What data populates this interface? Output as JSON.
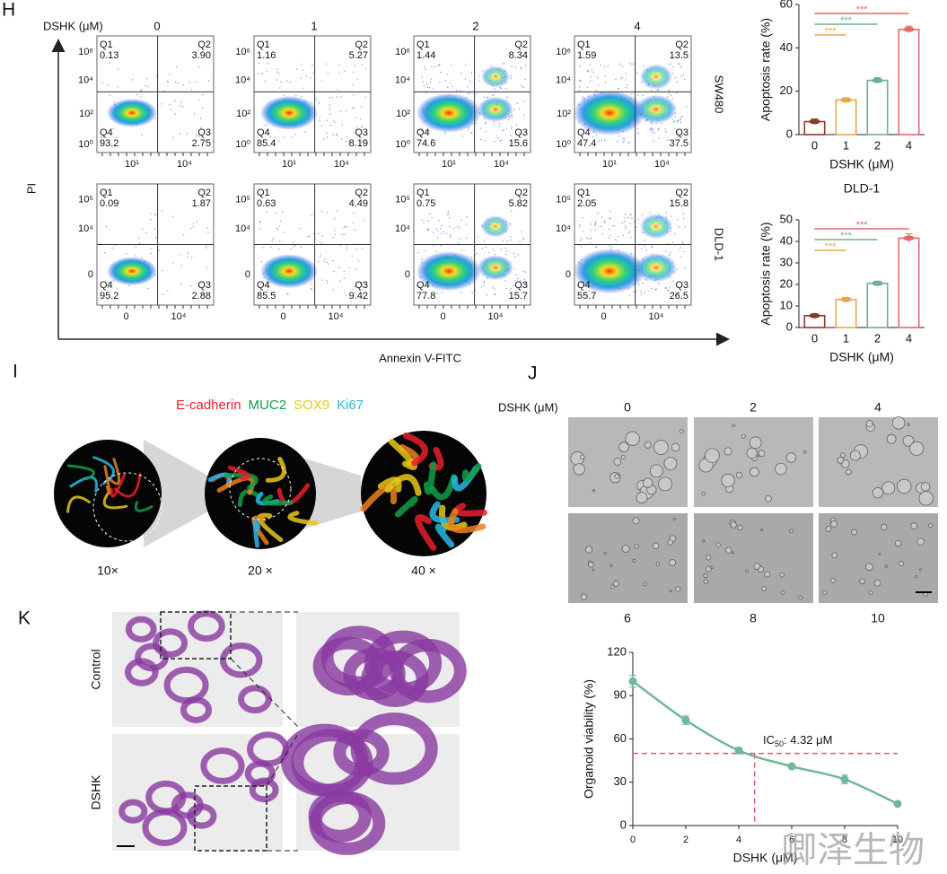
{
  "panel_labels": {
    "h": "H",
    "i": "I",
    "j": "J",
    "k": "K"
  },
  "flow_cytometry": {
    "dose_label": "DSHK (μM)",
    "doses": [
      "0",
      "1",
      "2",
      "4"
    ],
    "y_label": "PI",
    "x_label": "Annexin V-FITC",
    "quadrant_names": [
      "Q1",
      "Q2",
      "Q3",
      "Q4"
    ],
    "rows": [
      {
        "cell_line": "SW480",
        "yticks": [
          "10⁶",
          "10⁴",
          "10²",
          "10⁰"
        ],
        "xticks": [
          "10¹",
          "10⁴"
        ],
        "plots": [
          [
            "0.13",
            "3.90",
            "2.75",
            "93.2"
          ],
          [
            "1.16",
            "5.27",
            "8.19",
            "85.4"
          ],
          [
            "1.44",
            "8.34",
            "15.6",
            "74.6"
          ],
          [
            "1.59",
            "13.5",
            "37.5",
            "47.4"
          ]
        ]
      },
      {
        "cell_line": "DLD-1",
        "yticks": [
          "10⁵",
          "10⁴",
          "0"
        ],
        "xticks": [
          "0",
          "10⁴"
        ],
        "plots": [
          [
            "0.09",
            "1.87",
            "2.88",
            "95.2"
          ],
          [
            "0.63",
            "4.49",
            "9.42",
            "85.5"
          ],
          [
            "0.75",
            "5.82",
            "15.7",
            "77.8"
          ],
          [
            "2.05",
            "15.8",
            "26.5",
            "55.7"
          ]
        ]
      }
    ]
  },
  "chart_data": [
    {
      "type": "bar",
      "y_label": "Apoptosis rate (%)",
      "x_label": "DSHK (μM)",
      "categories": [
        "0",
        "1",
        "2",
        "4"
      ],
      "values": [
        6,
        16,
        25,
        48.5
      ],
      "errors": [
        1.2,
        1,
        1.3,
        1.5
      ],
      "colors": [
        "#8b3a2a",
        "#e8a64a",
        "#6fae93",
        "#e06a6a"
      ],
      "significance": [
        "***",
        "***",
        "***"
      ],
      "ylim": [
        0,
        60
      ],
      "yticks": [
        0,
        20,
        40,
        60
      ]
    },
    {
      "type": "bar",
      "title": "DLD-1",
      "y_label": "Apoptosis rate (%)",
      "x_label": "DSHK (μM)",
      "categories": [
        "0",
        "1",
        "2",
        "4"
      ],
      "values": [
        5.5,
        13,
        20.5,
        41.5
      ],
      "errors": [
        0.6,
        1,
        1,
        2
      ],
      "colors": [
        "#8b3a2a",
        "#e8a64a",
        "#6fae93",
        "#e06a6a"
      ],
      "significance": [
        "***",
        "***",
        "***"
      ],
      "ylim": [
        0,
        50
      ],
      "yticks": [
        0,
        10,
        20,
        30,
        40,
        50
      ]
    },
    {
      "type": "line",
      "y_label": "Organoid viability (%)",
      "x_label": "DSHK (μM)",
      "x": [
        0,
        2,
        4,
        6,
        8,
        10
      ],
      "values": [
        100,
        73,
        52,
        41,
        32,
        15
      ],
      "errors": [
        4,
        3,
        2,
        1,
        3,
        1
      ],
      "color": "#6fb89a",
      "xlim": [
        0,
        10
      ],
      "xticks": [
        0,
        2,
        4,
        6,
        8,
        10
      ],
      "ylim": [
        0,
        120
      ],
      "yticks": [
        0,
        30,
        60,
        90,
        120
      ],
      "annotation": {
        "main": "IC",
        "sub": "50",
        "rest": ": 4.32 μM"
      },
      "reference_lines": {
        "x": 4.6,
        "y": 50,
        "color": "#e05a6a"
      }
    }
  ],
  "panel_i": {
    "markers": [
      {
        "text": "E-cadherin",
        "color": "#e8202a"
      },
      {
        "text": "MUC2",
        "color": "#12a04a"
      },
      {
        "text": "SOX9",
        "color": "#e8c81a"
      },
      {
        "text": "Ki67",
        "color": "#2ab8e8"
      }
    ],
    "magnifications": [
      "10×",
      "20 ×",
      "40 ×"
    ]
  },
  "panel_j": {
    "dose_label": "DSHK (μM)",
    "top_doses": [
      "0",
      "2",
      "4"
    ],
    "bottom_doses": [
      "6",
      "8",
      "10"
    ]
  },
  "panel_k": {
    "rows": [
      "Control",
      "DSHK"
    ]
  },
  "watermark": "卿泽生物"
}
